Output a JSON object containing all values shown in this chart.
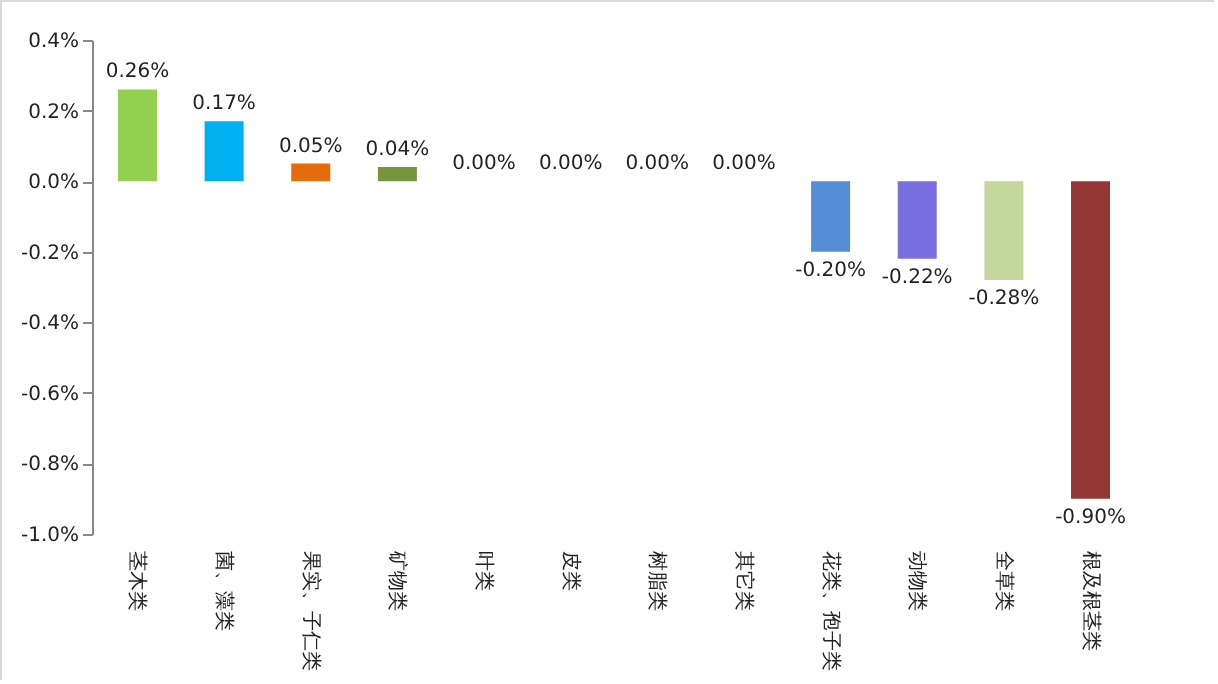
{
  "chart_data": {
    "type": "bar",
    "categories": [
      "茎木类",
      "菌、藻类",
      "果实、子仁类",
      "矿物类",
      "叶类",
      "皮类",
      "树脂类",
      "其它类",
      "花类、孢子类",
      "动物类",
      "全草类",
      "根及根茎类"
    ],
    "values": [
      0.26,
      0.17,
      0.05,
      0.04,
      0,
      0,
      0,
      0,
      -0.2,
      -0.22,
      -0.28,
      -0.9
    ],
    "colors": [
      "#92d050",
      "#00b0f0",
      "#e46c0a",
      "#77933c",
      "#92d050",
      "#92d050",
      "#92d050",
      "#92d050",
      "#558ed5",
      "#7a6fe0",
      "#c3d69b",
      "#953735"
    ],
    "value_labels": [
      "0.26%",
      "0.17%",
      "0.05%",
      "0.04%",
      "0.00%",
      "0.00%",
      "0.00%",
      "0.00%",
      "-0.20%",
      "-0.22%",
      "-0.28%",
      "-0.90%"
    ],
    "ylim": [
      -1.0,
      0.4
    ],
    "yticks": [
      {
        "value": 0.4,
        "label": "0.4%"
      },
      {
        "value": 0.2,
        "label": "0.2%"
      },
      {
        "value": 0,
        "label": "0.0%"
      },
      {
        "value": -0.2,
        "label": "-0.2%"
      },
      {
        "value": -0.4,
        "label": "-0.4%"
      },
      {
        "value": -0.6,
        "label": "-0.6%"
      },
      {
        "value": -0.8,
        "label": "-0.8%"
      },
      {
        "value": -1.0,
        "label": "-1.0%"
      }
    ]
  }
}
